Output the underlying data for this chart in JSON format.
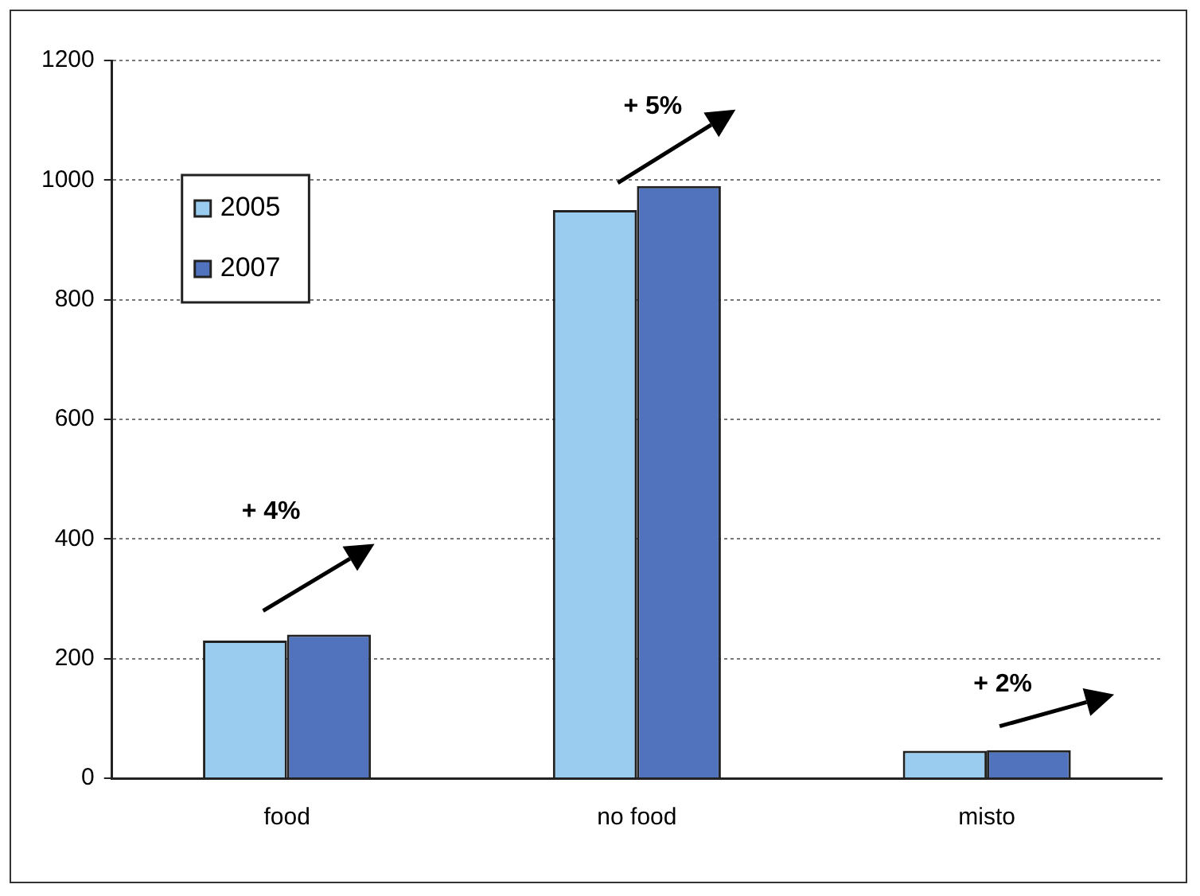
{
  "chart_data": {
    "type": "bar",
    "categories": [
      "food",
      "no food",
      "misto"
    ],
    "series": [
      {
        "name": "2005",
        "color": "#99ccee",
        "values": [
          230,
          950,
          46
        ]
      },
      {
        "name": "2007",
        "color": "#5173be",
        "values": [
          240,
          990,
          47
        ]
      }
    ],
    "ylim": [
      0,
      1200
    ],
    "yticks": [
      0,
      200,
      400,
      600,
      800,
      1000,
      1200
    ],
    "grid": "y",
    "legend": "top left",
    "annotations": [
      "+ 4%",
      "+ 5%",
      "+ 2%"
    ]
  }
}
